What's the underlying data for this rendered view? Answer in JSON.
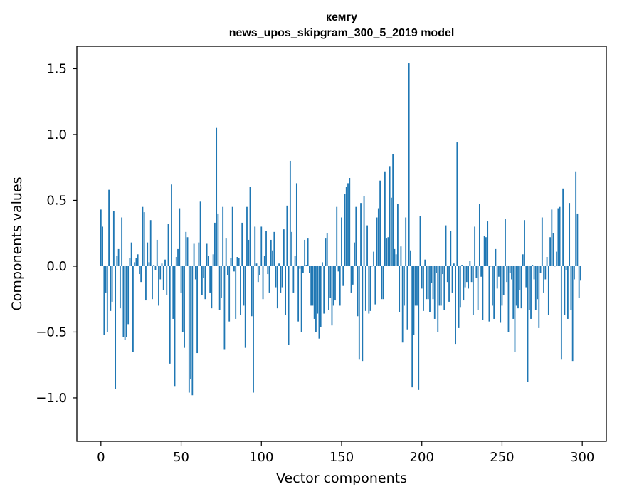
{
  "chart_data": {
    "type": "bar",
    "title": "кемгу",
    "subtitle": "news_upos_skipgram_300_5_2019 model",
    "xlabel": "Vector components",
    "ylabel": "Components values",
    "xlim": [
      -15,
      315
    ],
    "ylim": [
      -1.33,
      1.67
    ],
    "x_ticks": [
      {
        "value": 0,
        "label": "0"
      },
      {
        "value": 50,
        "label": "50"
      },
      {
        "value": 100,
        "label": "100"
      },
      {
        "value": 150,
        "label": "150"
      },
      {
        "value": 200,
        "label": "200"
      },
      {
        "value": 250,
        "label": "250"
      },
      {
        "value": 300,
        "label": "300"
      }
    ],
    "y_ticks": [
      {
        "value": -1.0,
        "label": "−1.0"
      },
      {
        "value": -0.5,
        "label": "−0.5"
      },
      {
        "value": 0.0,
        "label": "0.0"
      },
      {
        "value": 0.5,
        "label": "0.5"
      },
      {
        "value": 1.0,
        "label": "1.0"
      },
      {
        "value": 1.5,
        "label": "1.5"
      }
    ],
    "bar_color": "#1f77b4",
    "grid": false,
    "values": [
      0.43,
      0.3,
      -0.52,
      -0.2,
      -0.5,
      0.58,
      -0.34,
      -0.27,
      0.42,
      -0.93,
      0.08,
      0.13,
      -0.32,
      0.37,
      -0.54,
      -0.56,
      -0.54,
      -0.44,
      0.06,
      0.18,
      -0.65,
      0.03,
      0.06,
      0.09,
      -0.06,
      -0.12,
      0.45,
      0.41,
      -0.26,
      0.18,
      0.03,
      0.35,
      -0.25,
      0.01,
      -0.03,
      0.2,
      -0.3,
      -0.1,
      0.02,
      -0.18,
      0.05,
      -0.22,
      0.32,
      -0.74,
      0.62,
      -0.4,
      -0.91,
      0.07,
      0.13,
      0.44,
      -0.2,
      -0.5,
      -0.62,
      0.26,
      0.22,
      -0.96,
      -0.86,
      -0.98,
      0.17,
      -0.1,
      -0.66,
      0.18,
      0.49,
      -0.22,
      -0.09,
      -0.25,
      0.17,
      0.08,
      -0.2,
      -0.32,
      0.09,
      0.33,
      1.05,
      0.4,
      -0.33,
      -0.24,
      0.45,
      -0.63,
      0.21,
      -0.07,
      -0.42,
      0.06,
      0.45,
      -0.04,
      -0.4,
      0.07,
      0.06,
      -0.37,
      0.33,
      -0.3,
      -0.62,
      0.45,
      0.2,
      0.6,
      -0.38,
      -0.96,
      0.3,
      0.02,
      -0.12,
      -0.07,
      0.3,
      -0.25,
      0.08,
      0.27,
      -0.06,
      -0.2,
      0.2,
      0.12,
      0.26,
      -0.16,
      -0.32,
      0.02,
      -0.2,
      -0.16,
      0.28,
      -0.37,
      0.46,
      -0.6,
      0.8,
      0.26,
      -0.2,
      0.08,
      0.63,
      -0.42,
      -0.02,
      -0.5,
      -0.05,
      0.2,
      0.01,
      0.21,
      -0.05,
      -0.3,
      -0.3,
      -0.4,
      -0.5,
      -0.36,
      -0.55,
      -0.46,
      0.03,
      -0.36,
      0.21,
      0.25,
      -0.33,
      -0.24,
      -0.45,
      -0.3,
      -0.26,
      0.45,
      -0.04,
      -0.3,
      0.37,
      -0.15,
      0.55,
      0.6,
      0.63,
      0.67,
      -0.2,
      -0.14,
      0.18,
      0.45,
      -0.38,
      -0.71,
      0.48,
      -0.72,
      0.53,
      -0.34,
      0.31,
      -0.36,
      -0.34,
      0.0,
      0.11,
      -0.29,
      0.37,
      0.44,
      0.65,
      -0.25,
      -0.25,
      0.72,
      0.21,
      0.22,
      0.76,
      0.52,
      0.85,
      0.13,
      0.09,
      0.47,
      -0.35,
      0.15,
      -0.58,
      -0.3,
      0.37,
      -0.48,
      1.54,
      0.12,
      -0.92,
      -0.52,
      -0.3,
      -0.3,
      -0.94,
      0.38,
      -0.17,
      -0.34,
      0.05,
      -0.25,
      -0.25,
      -0.35,
      -0.13,
      -0.25,
      -0.4,
      -0.05,
      -0.5,
      -0.3,
      -0.3,
      -0.06,
      -0.33,
      0.31,
      -0.12,
      -0.27,
      0.27,
      -0.2,
      0.02,
      -0.59,
      0.94,
      -0.47,
      -0.31,
      0.01,
      -0.26,
      -0.16,
      -0.12,
      -0.17,
      0.04,
      -0.12,
      -0.37,
      0.3,
      -0.09,
      -0.33,
      0.47,
      -0.08,
      -0.41,
      0.23,
      0.22,
      0.34,
      -0.42,
      0.0,
      -0.3,
      -0.4,
      0.13,
      -0.17,
      -0.08,
      -0.43,
      -0.3,
      -0.22,
      0.36,
      -0.12,
      -0.5,
      -0.05,
      -0.1,
      -0.4,
      -0.65,
      -0.3,
      -0.32,
      -0.18,
      -0.32,
      0.09,
      0.35,
      -0.16,
      -0.88,
      -0.33,
      -0.4,
      0.01,
      -0.1,
      -0.33,
      -0.25,
      -0.47,
      -0.05,
      0.37,
      -0.2,
      -0.1,
      0.07,
      -0.37,
      0.22,
      0.43,
      0.25,
      0.0,
      0.11,
      0.44,
      0.45,
      -0.71,
      0.59,
      -0.37,
      -0.03,
      -0.4,
      0.48,
      -0.33,
      -0.72,
      -0.1,
      0.72,
      0.4,
      -0.24,
      -0.11
    ]
  }
}
